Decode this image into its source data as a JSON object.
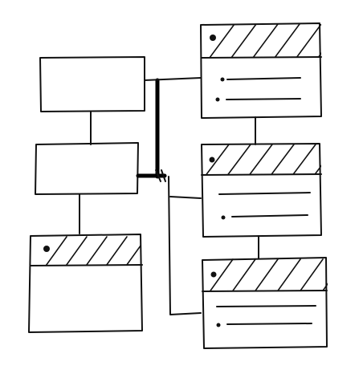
{
  "diagram": {
    "type": "hand-drawn wireframe sketch",
    "ink_color": "#111111",
    "background_color": "#ffffff",
    "blocks": [
      {
        "name": "plain-box-top",
        "kind": "plain"
      },
      {
        "name": "plain-box-middle",
        "kind": "plain"
      },
      {
        "name": "window-box-bottom-left",
        "kind": "window",
        "header": "hatched",
        "list_items": 0
      },
      {
        "name": "window-box-right-1",
        "kind": "window",
        "header": "hatched",
        "list_items": 2
      },
      {
        "name": "window-box-right-2",
        "kind": "window",
        "header": "hatched",
        "list_items": 2
      },
      {
        "name": "window-box-right-3",
        "kind": "window",
        "header": "hatched",
        "list_items": 2
      }
    ],
    "text": []
  }
}
